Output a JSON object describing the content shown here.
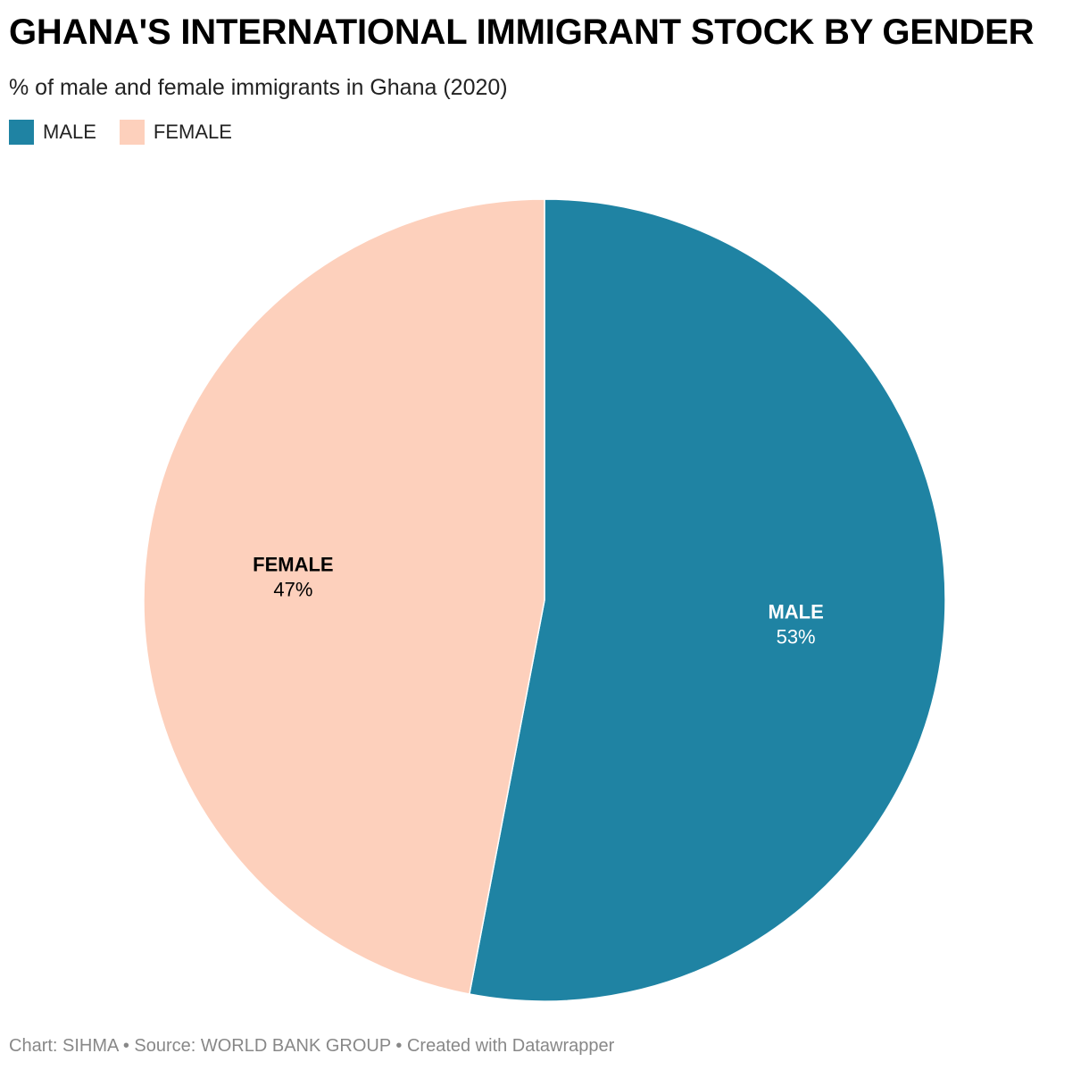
{
  "header": {
    "title": "GHANA'S INTERNATIONAL IMMIGRANT STOCK BY GENDER",
    "subtitle": "% of male and female immigrants in Ghana (2020)"
  },
  "footer": {
    "credit": "Chart: SIHMA • Source: WORLD BANK GROUP • Created with Datawrapper"
  },
  "chart_data": {
    "type": "pie",
    "title": "GHANA'S INTERNATIONAL IMMIGRANT STOCK BY GENDER",
    "subtitle": "% of male and female immigrants in Ghana (2020)",
    "legend_position": "top-left",
    "slices": [
      {
        "label": "MALE",
        "value": 53,
        "display": "53%",
        "color": "#1f83a3",
        "label_color": "#ffffff"
      },
      {
        "label": "FEMALE",
        "value": 47,
        "display": "47%",
        "color": "#fdd0bc",
        "label_color": "#000000"
      }
    ]
  }
}
